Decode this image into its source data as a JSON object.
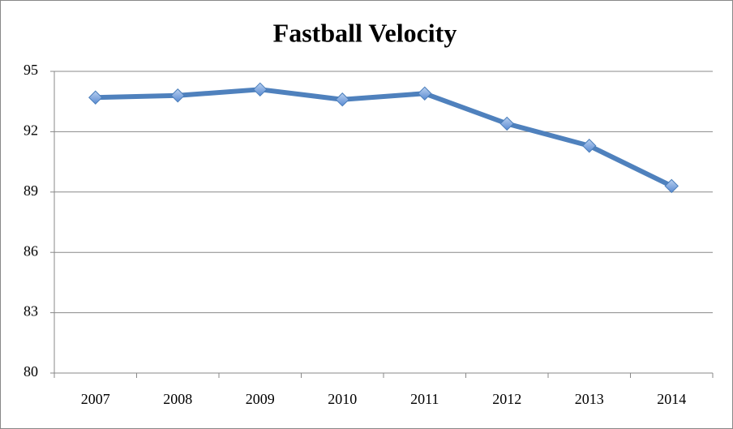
{
  "chart_data": {
    "type": "line",
    "title": "Fastball Velocity",
    "categories": [
      "2007",
      "2008",
      "2009",
      "2010",
      "2011",
      "2012",
      "2013",
      "2014"
    ],
    "values": [
      93.7,
      93.8,
      94.1,
      93.6,
      93.9,
      92.4,
      91.3,
      89.3
    ],
    "color": "#4f81bd",
    "ylim": [
      80,
      95
    ],
    "yticks": [
      80,
      83,
      86,
      89,
      92,
      95
    ],
    "grid": true
  }
}
